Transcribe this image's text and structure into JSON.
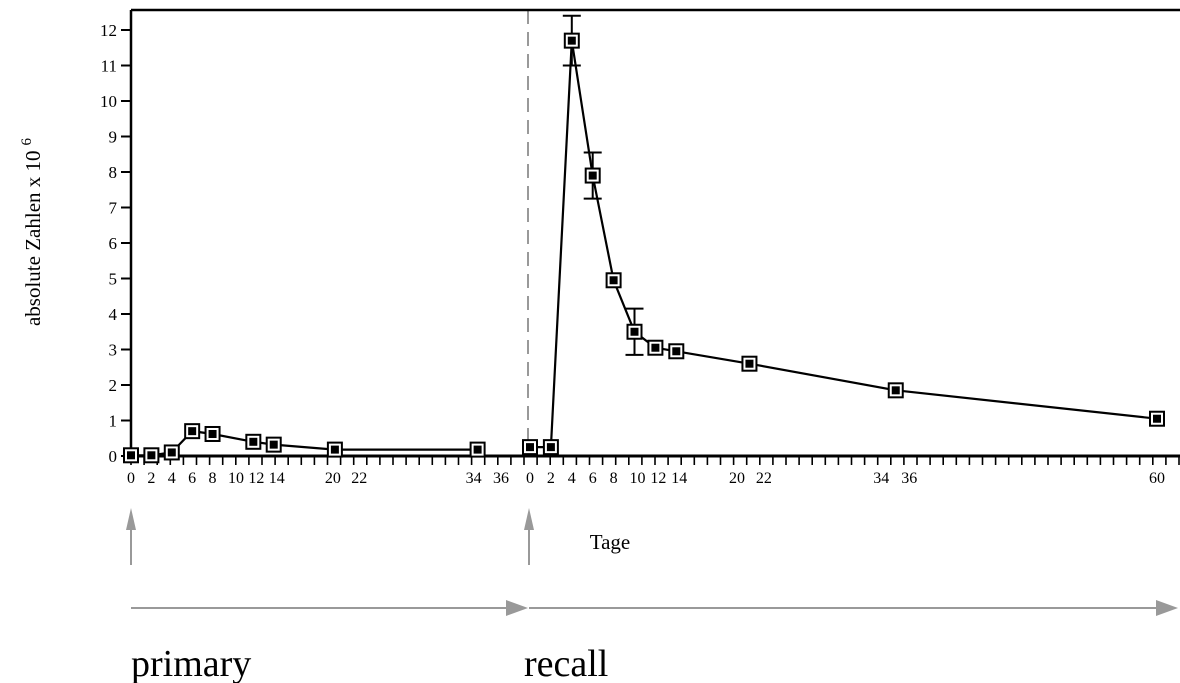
{
  "chart_data": {
    "type": "line",
    "ylabel": "absolute Zahlen x 10",
    "ylabel_exponent": "6",
    "xlabel": "Tage",
    "ylim": [
      0,
      12.5
    ],
    "yticks": [
      0,
      1,
      2,
      3,
      4,
      5,
      6,
      7,
      8,
      9,
      10,
      11,
      12
    ],
    "grid": false,
    "primary": {
      "label": "primary",
      "xlim": [
        0,
        36
      ],
      "xtick_labels": [
        "0",
        "2",
        "4",
        "6",
        "8",
        "10",
        "12",
        "14",
        "20",
        "22",
        "34",
        "36"
      ],
      "x": [
        0,
        2,
        4,
        6,
        8,
        12,
        14,
        20,
        34
      ],
      "y": [
        0.02,
        0.02,
        0.1,
        0.7,
        0.62,
        0.4,
        0.32,
        0.18,
        0.18
      ]
    },
    "recall": {
      "label": "recall",
      "xlim": [
        0,
        60
      ],
      "xtick_labels": [
        "0",
        "2",
        "4",
        "6",
        "8",
        "10",
        "12",
        "14",
        "20",
        "22",
        "34",
        "36",
        "60"
      ],
      "x": [
        0,
        2,
        4,
        6,
        8,
        10,
        12,
        14,
        21,
        35,
        60
      ],
      "y": [
        0.25,
        0.25,
        11.7,
        7.9,
        4.95,
        3.5,
        3.05,
        2.95,
        2.6,
        1.85,
        1.05
      ],
      "error_bars": [
        {
          "x": 4,
          "low": 11.0,
          "high": 12.4
        },
        {
          "x": 6,
          "low": 7.25,
          "high": 8.55
        },
        {
          "x": 10,
          "low": 2.85,
          "high": 4.15
        }
      ]
    }
  }
}
